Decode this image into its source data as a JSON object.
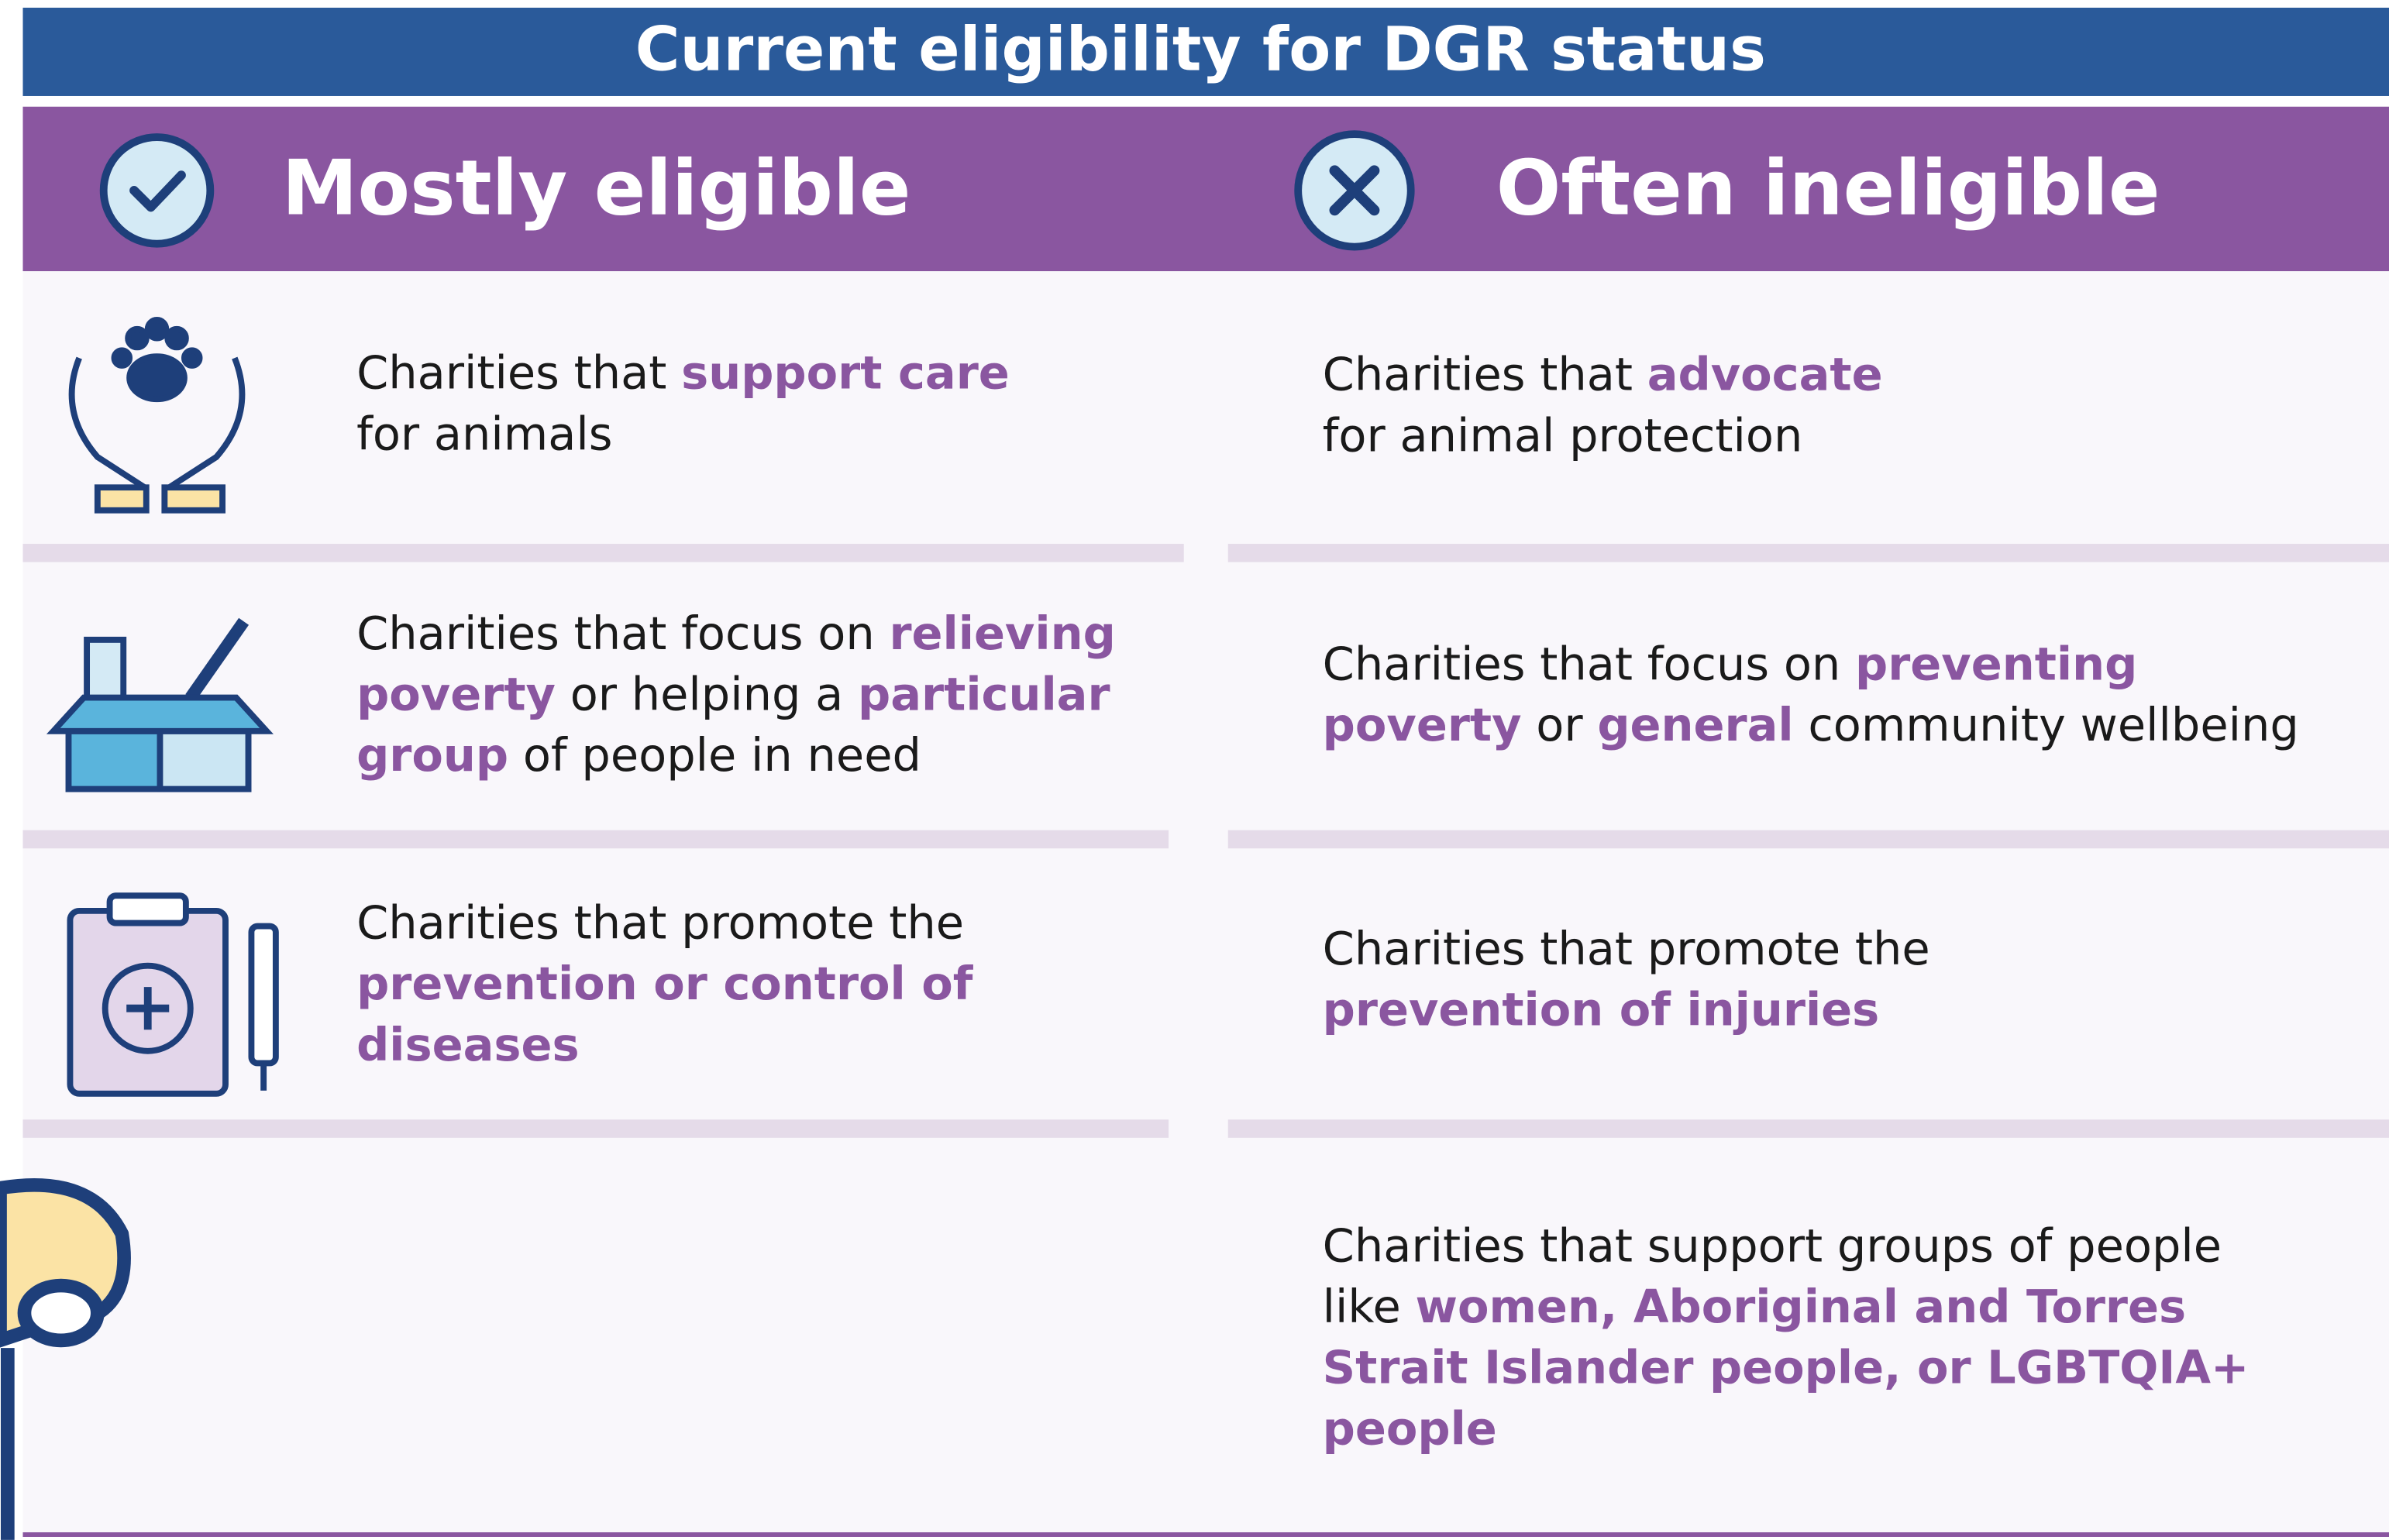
{
  "title": "Current eligibility for DGR status",
  "columns": [
    {
      "heading": "Mostly eligible",
      "rows": [
        {
          "lines": [
            [
              {
                "text": "Charities that ",
                "bold": false
              },
              {
                "text": "support care",
                "bold": true
              }
            ],
            [
              {
                "text": "for animals",
                "bold": false
              }
            ]
          ]
        },
        {
          "lines": [
            [
              {
                "text": "Charities that focus on ",
                "bold": false
              },
              {
                "text": "relieving",
                "bold": true
              }
            ],
            [
              {
                "text": "poverty",
                "bold": true
              },
              {
                "text": " or helping a ",
                "bold": false
              },
              {
                "text": "particular",
                "bold": true
              }
            ],
            [
              {
                "text": "group",
                "bold": true
              },
              {
                "text": " of people in need",
                "bold": false
              }
            ]
          ]
        },
        {
          "lines": [
            [
              {
                "text": "Charities that promote the",
                "bold": false
              }
            ],
            [
              {
                "text": "prevention or control of",
                "bold": true
              }
            ],
            [
              {
                "text": "diseases",
                "bold": true
              }
            ]
          ]
        }
      ]
    },
    {
      "heading": "Often ineligible",
      "rows": [
        {
          "lines": [
            [
              {
                "text": "Charities that ",
                "bold": false
              },
              {
                "text": "advocate",
                "bold": true
              }
            ],
            [
              {
                "text": "for animal protection",
                "bold": false
              }
            ]
          ]
        },
        {
          "lines": [
            [
              {
                "text": "Charities that focus on ",
                "bold": false
              },
              {
                "text": "preventing",
                "bold": true
              }
            ],
            [
              {
                "text": "poverty",
                "bold": true
              },
              {
                "text": " or ",
                "bold": false
              },
              {
                "text": "general",
                "bold": true
              },
              {
                "text": " community wellbeing",
                "bold": false
              }
            ]
          ]
        },
        {
          "lines": [
            [
              {
                "text": "Charities that promote the",
                "bold": false
              }
            ],
            [
              {
                "text": "prevention of injuries",
                "bold": true
              }
            ]
          ]
        },
        {
          "lines": [
            [
              {
                "text": "Charities that support groups of people",
                "bold": false
              }
            ],
            [
              {
                "text": "like ",
                "bold": false
              },
              {
                "text": "women, Aboriginal and Torres",
                "bold": true
              }
            ],
            [
              {
                "text": "Strait Islander people, or LGBTQIA+",
                "bold": true
              }
            ],
            [
              {
                "text": "people",
                "bold": true
              }
            ]
          ]
        }
      ]
    }
  ]
}
